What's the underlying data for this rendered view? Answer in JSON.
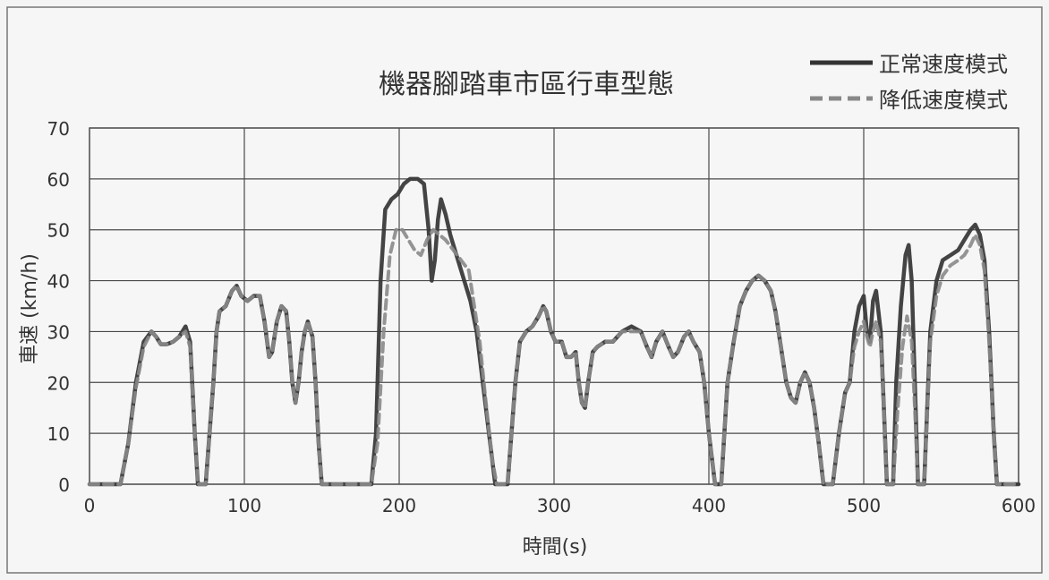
{
  "chart_data": {
    "type": "line",
    "title": "機器腳踏車市區行車型態",
    "xlabel": "時間(s)",
    "ylabel": "車速 (km/h)",
    "xlim": [
      0,
      600
    ],
    "ylim": [
      0,
      70
    ],
    "xticks": [
      0,
      100,
      200,
      300,
      400,
      500,
      600
    ],
    "yticks": [
      0,
      10,
      20,
      30,
      40,
      50,
      60,
      70
    ],
    "grid": true,
    "legend_position": "top-right",
    "colors": {
      "normal": "#3a3a3a",
      "reduced": "#8a8a8a",
      "grid": "#4a4a4a",
      "frame": "#555555"
    },
    "series": [
      {
        "name": "正常速度模式",
        "style": "solid",
        "points": [
          [
            0,
            0
          ],
          [
            20,
            0
          ],
          [
            25,
            8
          ],
          [
            30,
            20
          ],
          [
            35,
            28
          ],
          [
            40,
            30
          ],
          [
            43,
            29
          ],
          [
            46,
            27.5
          ],
          [
            50,
            27.5
          ],
          [
            54,
            28
          ],
          [
            58,
            29
          ],
          [
            62,
            31
          ],
          [
            65,
            28
          ],
          [
            68,
            10
          ],
          [
            70,
            0
          ],
          [
            75,
            0
          ],
          [
            80,
            20
          ],
          [
            82,
            30
          ],
          [
            84,
            34
          ],
          [
            88,
            35
          ],
          [
            92,
            38
          ],
          [
            95,
            39
          ],
          [
            98,
            37
          ],
          [
            102,
            36
          ],
          [
            106,
            37
          ],
          [
            110,
            37
          ],
          [
            113,
            32
          ],
          [
            116,
            25
          ],
          [
            118,
            26
          ],
          [
            121,
            32
          ],
          [
            124,
            35
          ],
          [
            127,
            34
          ],
          [
            129,
            28
          ],
          [
            131,
            20
          ],
          [
            133,
            16
          ],
          [
            135,
            20
          ],
          [
            137,
            26
          ],
          [
            139,
            30
          ],
          [
            141,
            32
          ],
          [
            144,
            29
          ],
          [
            146,
            20
          ],
          [
            148,
            8
          ],
          [
            150,
            0
          ],
          [
            182,
            0
          ],
          [
            185,
            10
          ],
          [
            188,
            40
          ],
          [
            191,
            54
          ],
          [
            195,
            56
          ],
          [
            199,
            57
          ],
          [
            203,
            59
          ],
          [
            207,
            60
          ],
          [
            212,
            60
          ],
          [
            216,
            59
          ],
          [
            219,
            50
          ],
          [
            221,
            40
          ],
          [
            223,
            44
          ],
          [
            225,
            52
          ],
          [
            227,
            56
          ],
          [
            230,
            53
          ],
          [
            233,
            49
          ],
          [
            237,
            45
          ],
          [
            242,
            40
          ],
          [
            246,
            36
          ],
          [
            250,
            30
          ],
          [
            254,
            20
          ],
          [
            258,
            10
          ],
          [
            262,
            0
          ],
          [
            270,
            0
          ],
          [
            275,
            20
          ],
          [
            278,
            28
          ],
          [
            282,
            30
          ],
          [
            286,
            31
          ],
          [
            290,
            33
          ],
          [
            293,
            35
          ],
          [
            295,
            34
          ],
          [
            298,
            30
          ],
          [
            301,
            28
          ],
          [
            305,
            28
          ],
          [
            308,
            25
          ],
          [
            311,
            25
          ],
          [
            314,
            26
          ],
          [
            316,
            20
          ],
          [
            318,
            16
          ],
          [
            320,
            15
          ],
          [
            322,
            20
          ],
          [
            325,
            26
          ],
          [
            328,
            27
          ],
          [
            333,
            28
          ],
          [
            338,
            28
          ],
          [
            344,
            30
          ],
          [
            350,
            31
          ],
          [
            356,
            30
          ],
          [
            360,
            27
          ],
          [
            363,
            25
          ],
          [
            366,
            28
          ],
          [
            370,
            30
          ],
          [
            374,
            27
          ],
          [
            377,
            25
          ],
          [
            380,
            26
          ],
          [
            384,
            29
          ],
          [
            387,
            30
          ],
          [
            390,
            28
          ],
          [
            394,
            26
          ],
          [
            397,
            20
          ],
          [
            400,
            10
          ],
          [
            404,
            0
          ],
          [
            408,
            0
          ],
          [
            412,
            20
          ],
          [
            416,
            28
          ],
          [
            420,
            35
          ],
          [
            424,
            38
          ],
          [
            428,
            40
          ],
          [
            432,
            41
          ],
          [
            436,
            40
          ],
          [
            440,
            38
          ],
          [
            443,
            34
          ],
          [
            446,
            28
          ],
          [
            450,
            20
          ],
          [
            453,
            17
          ],
          [
            456,
            16
          ],
          [
            459,
            20
          ],
          [
            462,
            22
          ],
          [
            465,
            20
          ],
          [
            468,
            15
          ],
          [
            471,
            8
          ],
          [
            474,
            0
          ],
          [
            480,
            0
          ],
          [
            484,
            10
          ],
          [
            488,
            18
          ],
          [
            491,
            20
          ],
          [
            494,
            30
          ],
          [
            497,
            35
          ],
          [
            500,
            37
          ],
          [
            502,
            30
          ],
          [
            504,
            28
          ],
          [
            506,
            36
          ],
          [
            508,
            38
          ],
          [
            511,
            30
          ],
          [
            513,
            15
          ],
          [
            515,
            0
          ],
          [
            519,
            0
          ],
          [
            521,
            20
          ],
          [
            524,
            35
          ],
          [
            527,
            45
          ],
          [
            529,
            47
          ],
          [
            531,
            40
          ],
          [
            533,
            20
          ],
          [
            535,
            0
          ],
          [
            539,
            0
          ],
          [
            543,
            30
          ],
          [
            547,
            40
          ],
          [
            551,
            44
          ],
          [
            556,
            45
          ],
          [
            561,
            46
          ],
          [
            565,
            48
          ],
          [
            569,
            50
          ],
          [
            572,
            51
          ],
          [
            575,
            49
          ],
          [
            578,
            44
          ],
          [
            581,
            30
          ],
          [
            584,
            10
          ],
          [
            586,
            0
          ],
          [
            600,
            0
          ]
        ]
      },
      {
        "name": "降低速度模式",
        "style": "dashed",
        "points": [
          [
            0,
            0
          ],
          [
            20,
            0
          ],
          [
            25,
            8
          ],
          [
            30,
            19
          ],
          [
            35,
            27
          ],
          [
            40,
            30
          ],
          [
            43,
            29
          ],
          [
            46,
            27.5
          ],
          [
            50,
            27.5
          ],
          [
            54,
            28
          ],
          [
            58,
            29
          ],
          [
            62,
            30
          ],
          [
            65,
            27
          ],
          [
            68,
            10
          ],
          [
            70,
            0
          ],
          [
            75,
            0
          ],
          [
            80,
            20
          ],
          [
            82,
            30
          ],
          [
            84,
            34
          ],
          [
            88,
            35
          ],
          [
            92,
            38
          ],
          [
            95,
            39
          ],
          [
            98,
            37
          ],
          [
            102,
            36
          ],
          [
            106,
            37
          ],
          [
            110,
            37
          ],
          [
            113,
            32
          ],
          [
            116,
            25
          ],
          [
            118,
            26
          ],
          [
            121,
            32
          ],
          [
            124,
            35
          ],
          [
            127,
            34
          ],
          [
            129,
            28
          ],
          [
            131,
            20
          ],
          [
            133,
            16
          ],
          [
            135,
            20
          ],
          [
            137,
            26
          ],
          [
            139,
            30
          ],
          [
            141,
            32
          ],
          [
            144,
            29
          ],
          [
            146,
            20
          ],
          [
            148,
            8
          ],
          [
            150,
            0
          ],
          [
            182,
            0
          ],
          [
            186,
            8
          ],
          [
            190,
            30
          ],
          [
            194,
            45
          ],
          [
            198,
            50
          ],
          [
            202,
            50
          ],
          [
            206,
            48
          ],
          [
            210,
            46
          ],
          [
            214,
            45
          ],
          [
            218,
            48
          ],
          [
            222,
            50
          ],
          [
            226,
            49
          ],
          [
            230,
            48
          ],
          [
            235,
            46
          ],
          [
            240,
            44
          ],
          [
            245,
            42
          ],
          [
            248,
            36
          ],
          [
            252,
            28
          ],
          [
            256,
            16
          ],
          [
            260,
            5
          ],
          [
            263,
            0
          ],
          [
            270,
            0
          ],
          [
            275,
            20
          ],
          [
            278,
            28
          ],
          [
            282,
            30
          ],
          [
            286,
            31
          ],
          [
            290,
            33
          ],
          [
            293,
            35
          ],
          [
            295,
            34
          ],
          [
            298,
            30
          ],
          [
            301,
            28
          ],
          [
            305,
            28
          ],
          [
            308,
            25
          ],
          [
            311,
            25
          ],
          [
            314,
            26
          ],
          [
            316,
            20
          ],
          [
            318,
            16
          ],
          [
            320,
            15
          ],
          [
            322,
            20
          ],
          [
            325,
            26
          ],
          [
            328,
            27
          ],
          [
            333,
            28
          ],
          [
            338,
            28
          ],
          [
            344,
            30
          ],
          [
            350,
            30
          ],
          [
            356,
            30
          ],
          [
            360,
            27
          ],
          [
            363,
            25
          ],
          [
            366,
            28
          ],
          [
            370,
            30
          ],
          [
            374,
            27
          ],
          [
            377,
            25
          ],
          [
            380,
            26
          ],
          [
            384,
            29
          ],
          [
            387,
            30
          ],
          [
            390,
            28
          ],
          [
            394,
            26
          ],
          [
            397,
            20
          ],
          [
            400,
            10
          ],
          [
            404,
            0
          ],
          [
            408,
            0
          ],
          [
            412,
            20
          ],
          [
            416,
            28
          ],
          [
            420,
            35
          ],
          [
            424,
            38
          ],
          [
            428,
            40
          ],
          [
            432,
            41
          ],
          [
            436,
            40
          ],
          [
            440,
            38
          ],
          [
            443,
            34
          ],
          [
            446,
            28
          ],
          [
            450,
            20
          ],
          [
            453,
            17
          ],
          [
            456,
            16
          ],
          [
            459,
            20
          ],
          [
            462,
            22
          ],
          [
            465,
            20
          ],
          [
            468,
            15
          ],
          [
            471,
            8
          ],
          [
            474,
            0
          ],
          [
            480,
            0
          ],
          [
            484,
            10
          ],
          [
            488,
            18
          ],
          [
            491,
            20
          ],
          [
            494,
            27
          ],
          [
            497,
            30
          ],
          [
            500,
            32
          ],
          [
            502,
            29
          ],
          [
            504,
            27
          ],
          [
            506,
            30
          ],
          [
            508,
            32
          ],
          [
            511,
            28
          ],
          [
            513,
            15
          ],
          [
            515,
            0
          ],
          [
            519,
            0
          ],
          [
            522,
            15
          ],
          [
            525,
            27
          ],
          [
            528,
            33
          ],
          [
            531,
            28
          ],
          [
            533,
            15
          ],
          [
            535,
            0
          ],
          [
            539,
            0
          ],
          [
            543,
            28
          ],
          [
            547,
            37
          ],
          [
            551,
            41
          ],
          [
            556,
            43
          ],
          [
            561,
            44
          ],
          [
            565,
            45
          ],
          [
            569,
            47
          ],
          [
            572,
            49
          ],
          [
            575,
            47
          ],
          [
            578,
            42
          ],
          [
            581,
            28
          ],
          [
            584,
            10
          ],
          [
            586,
            0
          ],
          [
            600,
            0
          ]
        ]
      }
    ]
  }
}
